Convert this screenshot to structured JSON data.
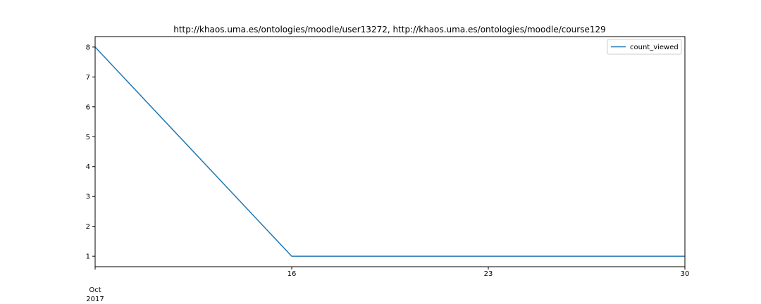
{
  "chart_data": {
    "type": "line",
    "title": "http://khaos.uma.es/ontologies/moodle/user13272, http://khaos.uma.es/ontologies/moodle/course129",
    "xlabel": "",
    "ylabel": "",
    "x": [
      "2017-10-09",
      "2017-10-16",
      "2017-10-23",
      "2017-10-30"
    ],
    "series": [
      {
        "name": "count_viewed",
        "color": "#1f77b4",
        "values": [
          8,
          1,
          1,
          1
        ]
      }
    ],
    "xlim": [
      "2017-10-09",
      "2017-10-30"
    ],
    "ylim": [
      0.65,
      8.35
    ],
    "x_ticks": [
      {
        "value": "2017-10-09",
        "label": "",
        "sublabel": "Oct",
        "sublabel2": "2017"
      },
      {
        "value": "2017-10-16",
        "label": "16"
      },
      {
        "value": "2017-10-23",
        "label": "23"
      },
      {
        "value": "2017-10-30",
        "label": "30"
      }
    ],
    "y_ticks": [
      1,
      2,
      3,
      4,
      5,
      6,
      7,
      8
    ],
    "grid": false,
    "legend_position": "top-right"
  }
}
